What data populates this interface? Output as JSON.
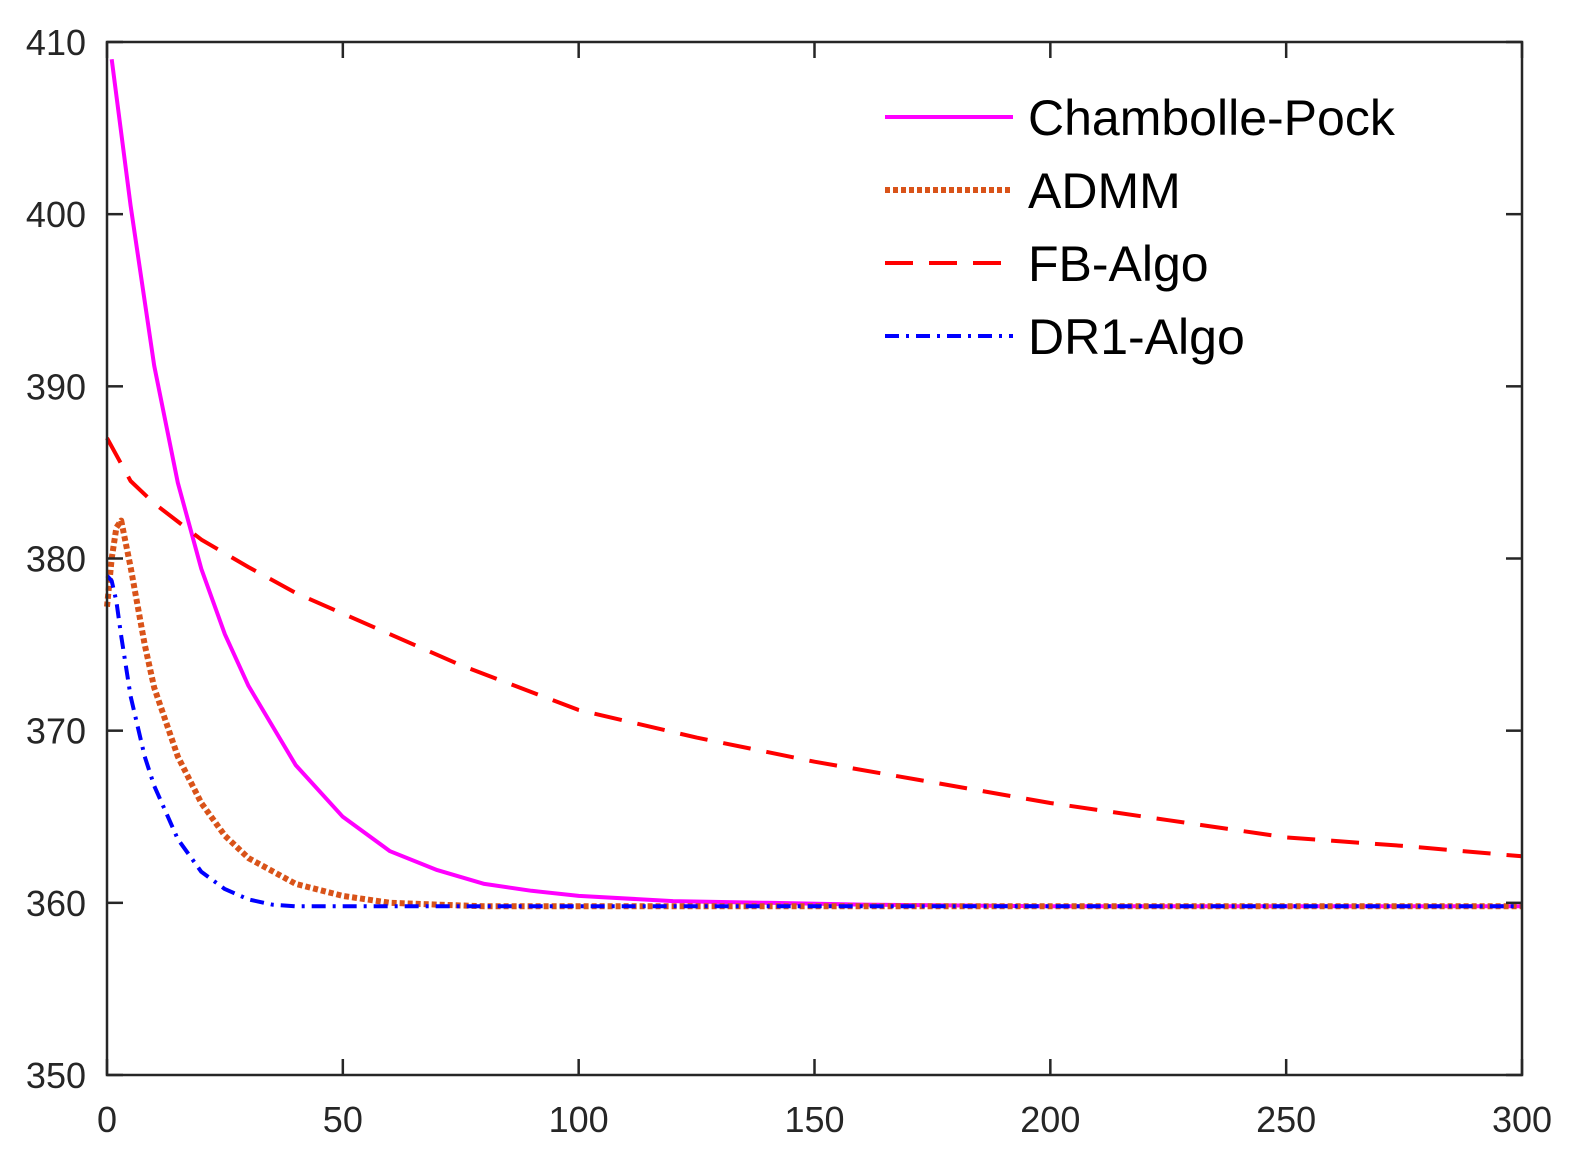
{
  "chart_data": {
    "type": "line",
    "title": "",
    "xlabel": "",
    "ylabel": "",
    "xlim": [
      0,
      300
    ],
    "ylim": [
      350,
      410
    ],
    "xticks": [
      0,
      50,
      100,
      150,
      200,
      250,
      300
    ],
    "yticks": [
      350,
      360,
      370,
      380,
      390,
      400,
      410
    ],
    "xtick_labels": [
      "0",
      "50",
      "100",
      "150",
      "200",
      "250",
      "300"
    ],
    "ytick_labels": [
      "350",
      "360",
      "370",
      "380",
      "390",
      "400",
      "410"
    ],
    "grid": false,
    "legend_position": "top-right",
    "series": [
      {
        "name": "Chambolle-Pock",
        "color": "#ff00ff",
        "style": "solid",
        "x": [
          1,
          5,
          10,
          15,
          20,
          25,
          30,
          40,
          50,
          60,
          70,
          80,
          90,
          100,
          120,
          140,
          160,
          200,
          250,
          300
        ],
        "y": [
          409,
          400.5,
          391.2,
          384.4,
          379.4,
          375.6,
          372.6,
          368.0,
          365.0,
          363.0,
          361.9,
          361.1,
          360.7,
          360.4,
          360.1,
          360.0,
          359.9,
          359.8,
          359.8,
          359.8
        ]
      },
      {
        "name": "ADMM",
        "color": "#d95319",
        "style": "dotted",
        "x": [
          0,
          1,
          2,
          3,
          5,
          8,
          10,
          15,
          20,
          25,
          30,
          40,
          50,
          60,
          70,
          80,
          100,
          150,
          200,
          250,
          300
        ],
        "y": [
          377.2,
          380,
          381.8,
          382.2,
          379.5,
          375,
          372.5,
          368.5,
          365.8,
          363.9,
          362.6,
          361.1,
          360.4,
          360.0,
          359.9,
          359.8,
          359.8,
          359.8,
          359.8,
          359.8,
          359.8
        ]
      },
      {
        "name": "FB-Algo",
        "color": "#ff0000",
        "style": "dashed",
        "x": [
          0,
          5,
          10,
          20,
          30,
          40,
          50,
          75,
          100,
          125,
          150,
          175,
          200,
          225,
          250,
          275,
          300
        ],
        "y": [
          387,
          384.5,
          383.2,
          381.1,
          379.5,
          378.0,
          376.8,
          373.8,
          371.2,
          369.6,
          368.2,
          367.0,
          365.8,
          364.8,
          363.8,
          363.3,
          362.7
        ]
      },
      {
        "name": "DR1-Algo",
        "color": "#0000ff",
        "style": "dashdot",
        "x": [
          0,
          1,
          2,
          3,
          5,
          8,
          10,
          15,
          20,
          25,
          30,
          35,
          40,
          50,
          75,
          100,
          150,
          200,
          250,
          300
        ],
        "y": [
          379,
          378.7,
          377.5,
          375.5,
          372.0,
          368.5,
          366.8,
          363.7,
          361.8,
          360.8,
          360.2,
          359.9,
          359.8,
          359.8,
          359.8,
          359.8,
          359.8,
          359.8,
          359.8,
          359.8
        ]
      }
    ]
  }
}
